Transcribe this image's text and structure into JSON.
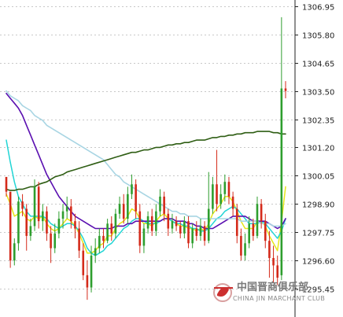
{
  "chart_data": {
    "type": "candlestick",
    "title": "",
    "xlabel": "",
    "ylabel": "",
    "ylim": [
      1294.3,
      1307.2
    ],
    "yticks": [
      "1306.95",
      "1305.80",
      "1304.65",
      "1303.50",
      "1302.35",
      "1301.20",
      "1300.05",
      "1298.90",
      "1297.75",
      "1296.60",
      "1295.45"
    ],
    "grid": true,
    "up_color": "#2e9e2e",
    "down_color": "#d42a1a",
    "candles": [
      [
        1300.0,
        1299.4,
        1299.9,
        1299.2
      ],
      [
        1299.4,
        1296.6,
        1298.9,
        1296.3
      ],
      [
        1296.6,
        1297.3,
        1297.5,
        1296.4
      ],
      [
        1297.3,
        1299.0,
        1299.2,
        1297.0
      ],
      [
        1299.0,
        1298.7,
        1299.3,
        1298.4
      ],
      [
        1298.7,
        1297.6,
        1298.9,
        1297.0
      ],
      [
        1297.6,
        1298.0,
        1298.3,
        1297.4
      ],
      [
        1298.0,
        1299.6,
        1299.9,
        1297.8
      ],
      [
        1299.6,
        1298.2,
        1299.8,
        1297.9
      ],
      [
        1298.2,
        1298.6,
        1298.9,
        1297.8
      ],
      [
        1298.6,
        1297.7,
        1298.8,
        1297.4
      ],
      [
        1297.7,
        1297.1,
        1298.0,
        1296.5
      ],
      [
        1297.1,
        1297.7,
        1298.1,
        1296.9
      ],
      [
        1297.7,
        1298.3,
        1298.6,
        1297.5
      ],
      [
        1298.3,
        1298.6,
        1298.9,
        1297.9
      ],
      [
        1298.6,
        1298.8,
        1299.2,
        1298.3
      ],
      [
        1298.8,
        1298.2,
        1299.1,
        1297.9
      ],
      [
        1298.2,
        1297.9,
        1298.5,
        1297.5
      ],
      [
        1297.9,
        1297.0,
        1298.2,
        1296.7
      ],
      [
        1297.0,
        1296.0,
        1297.3,
        1295.8
      ],
      [
        1296.0,
        1295.5,
        1296.6,
        1295.0
      ],
      [
        1295.5,
        1296.8,
        1297.2,
        1295.3
      ],
      [
        1296.8,
        1297.1,
        1297.5,
        1296.5
      ],
      [
        1297.1,
        1297.6,
        1297.9,
        1296.9
      ],
      [
        1297.6,
        1297.4,
        1297.9,
        1297.1
      ],
      [
        1297.4,
        1298.1,
        1298.3,
        1297.3
      ],
      [
        1298.1,
        1297.7,
        1298.4,
        1297.4
      ],
      [
        1297.7,
        1298.5,
        1298.7,
        1297.5
      ],
      [
        1298.5,
        1298.9,
        1299.2,
        1298.3
      ],
      [
        1298.9,
        1298.3,
        1299.3,
        1298.1
      ],
      [
        1298.3,
        1299.3,
        1299.6,
        1298.1
      ],
      [
        1299.3,
        1299.7,
        1300.1,
        1299.1
      ],
      [
        1299.7,
        1298.6,
        1299.9,
        1298.3
      ],
      [
        1298.6,
        1297.2,
        1298.9,
        1296.9
      ],
      [
        1297.2,
        1297.9,
        1298.1,
        1296.9
      ],
      [
        1297.9,
        1298.4,
        1298.6,
        1297.7
      ],
      [
        1298.4,
        1297.8,
        1298.7,
        1297.6
      ],
      [
        1297.8,
        1298.6,
        1298.9,
        1297.6
      ],
      [
        1298.6,
        1299.2,
        1299.5,
        1298.4
      ],
      [
        1299.2,
        1298.5,
        1299.4,
        1298.2
      ],
      [
        1298.5,
        1297.9,
        1298.7,
        1297.6
      ],
      [
        1297.9,
        1298.2,
        1298.5,
        1297.7
      ],
      [
        1298.2,
        1298.0,
        1298.4,
        1297.8
      ],
      [
        1298.0,
        1297.7,
        1298.2,
        1297.5
      ],
      [
        1297.7,
        1298.2,
        1298.4,
        1297.5
      ],
      [
        1298.2,
        1297.3,
        1298.4,
        1297.1
      ],
      [
        1297.3,
        1297.9,
        1298.1,
        1297.1
      ],
      [
        1297.9,
        1297.6,
        1298.2,
        1297.4
      ],
      [
        1297.6,
        1298.0,
        1298.3,
        1297.4
      ],
      [
        1298.0,
        1297.4,
        1298.2,
        1297.2
      ],
      [
        1297.4,
        1298.7,
        1300.2,
        1297.3
      ],
      [
        1298.7,
        1299.7,
        1300.0,
        1298.5
      ],
      [
        1299.7,
        1298.9,
        1301.1,
        1298.6
      ],
      [
        1298.9,
        1299.3,
        1299.7,
        1298.7
      ],
      [
        1299.3,
        1299.8,
        1300.1,
        1299.0
      ],
      [
        1299.8,
        1299.2,
        1300.0,
        1298.9
      ],
      [
        1299.2,
        1298.7,
        1299.4,
        1298.4
      ],
      [
        1298.7,
        1297.6,
        1298.9,
        1297.3
      ],
      [
        1297.6,
        1296.8,
        1297.9,
        1296.6
      ],
      [
        1296.8,
        1297.3,
        1297.7,
        1296.6
      ],
      [
        1297.3,
        1298.1,
        1298.4,
        1297.1
      ],
      [
        1298.1,
        1297.6,
        1298.3,
        1297.4
      ],
      [
        1297.6,
        1298.9,
        1299.2,
        1297.5
      ],
      [
        1298.9,
        1298.2,
        1299.1,
        1297.9
      ],
      [
        1298.2,
        1297.4,
        1298.5,
        1297.1
      ],
      [
        1297.4,
        1296.7,
        1297.8,
        1295.9
      ],
      [
        1296.7,
        1296.4,
        1297.2,
        1295.7
      ],
      [
        1296.4,
        1295.9,
        1296.8,
        1295.6
      ],
      [
        1296.0,
        1303.6,
        1306.5,
        1295.8
      ],
      [
        1303.6,
        1303.5,
        1303.9,
        1303.2
      ]
    ],
    "series": [
      {
        "color": "#e6e61a",
        "width": 1.5,
        "values": [
          1299.3,
          1298.9,
          1298.4,
          1298.5,
          1298.6,
          1298.3,
          1298.2,
          1298.4,
          1298.3,
          1298.4,
          1298.1,
          1297.9,
          1297.8,
          1297.9,
          1298.1,
          1298.3,
          1298.2,
          1298.0,
          1297.7,
          1297.3,
          1296.9,
          1296.9,
          1297.0,
          1297.2,
          1297.3,
          1297.6,
          1297.6,
          1297.9,
          1298.1,
          1298.2,
          1298.4,
          1298.7,
          1298.6,
          1298.3,
          1298.1,
          1298.1,
          1298.0,
          1298.2,
          1298.4,
          1298.5,
          1298.3,
          1298.2,
          1298.1,
          1298.0,
          1298.0,
          1297.9,
          1297.9,
          1297.8,
          1297.9,
          1297.8,
          1298.1,
          1298.5,
          1298.7,
          1298.9,
          1299.2,
          1299.2,
          1299.0,
          1298.6,
          1298.2,
          1297.9,
          1297.9,
          1297.9,
          1298.2,
          1298.2,
          1298.0,
          1297.6,
          1297.3,
          1297.0,
          1298.2,
          1299.6
        ]
      },
      {
        "color": "#22d5d5",
        "width": 1.5,
        "values": [
          1301.5,
          1300.6,
          1299.8,
          1299.2,
          1298.9,
          1298.6,
          1298.4,
          1298.4,
          1298.4,
          1298.4,
          1298.3,
          1298.1,
          1298.0,
          1297.9,
          1298.0,
          1298.1,
          1298.1,
          1298.0,
          1297.8,
          1297.5,
          1297.1,
          1296.9,
          1296.8,
          1296.9,
          1297.0,
          1297.2,
          1297.3,
          1297.5,
          1297.7,
          1297.9,
          1298.0,
          1298.2,
          1298.3,
          1298.3,
          1298.2,
          1298.1,
          1298.1,
          1298.1,
          1298.2,
          1298.3,
          1298.3,
          1298.2,
          1298.1,
          1298.1,
          1298.0,
          1298.0,
          1297.9,
          1297.9,
          1297.8,
          1297.8,
          1297.9,
          1298.1,
          1298.3,
          1298.4,
          1298.6,
          1298.7,
          1298.8,
          1298.7,
          1298.5,
          1298.3,
          1298.1,
          1298.1,
          1298.1,
          1298.2,
          1298.1,
          1297.9,
          1297.7,
          1297.5,
          1297.8,
          1298.3
        ]
      },
      {
        "color": "#5a0fb0",
        "width": 1.6,
        "values": [
          1303.4,
          1303.2,
          1303.0,
          1302.8,
          1302.5,
          1302.1,
          1301.7,
          1301.3,
          1300.9,
          1300.5,
          1300.1,
          1299.8,
          1299.5,
          1299.2,
          1299.0,
          1298.8,
          1298.6,
          1298.4,
          1298.3,
          1298.2,
          1298.1,
          1298.0,
          1297.9,
          1297.9,
          1297.9,
          1297.9,
          1297.9,
          1298.0,
          1298.0,
          1298.0,
          1298.1,
          1298.1,
          1298.2,
          1298.2,
          1298.2,
          1298.2,
          1298.2,
          1298.2,
          1298.2,
          1298.3,
          1298.3,
          1298.3,
          1298.2,
          1298.2,
          1298.2,
          1298.1,
          1298.1,
          1298.0,
          1298.0,
          1297.9,
          1297.9,
          1297.9,
          1298.0,
          1298.1,
          1298.2,
          1298.3,
          1298.4,
          1298.4,
          1298.4,
          1298.4,
          1298.3,
          1298.2,
          1298.2,
          1298.2,
          1298.2,
          1298.1,
          1298.0,
          1297.9,
          1298.0,
          1298.3
        ]
      },
      {
        "color": "#a8d5e3",
        "width": 1.6,
        "values": [
          1303.5,
          1303.3,
          1303.2,
          1303.1,
          1302.9,
          1302.8,
          1302.7,
          1302.5,
          1302.4,
          1302.3,
          1302.1,
          1302.0,
          1301.9,
          1301.8,
          1301.7,
          1301.6,
          1301.5,
          1301.4,
          1301.3,
          1301.2,
          1301.1,
          1301.0,
          1300.9,
          1300.8,
          1300.7,
          1300.5,
          1300.3,
          1300.1,
          1300.0,
          1299.8,
          1299.7,
          1299.6,
          1299.5,
          1299.4,
          1299.3,
          1299.2,
          1299.1,
          1299.0,
          1298.9,
          1298.8,
          1298.7,
          1298.6,
          1298.6,
          1298.5,
          1298.5,
          1298.4,
          1298.4,
          1298.4,
          1298.3,
          1298.3,
          1298.3,
          1298.3,
          1298.3,
          1298.3,
          1298.3,
          1298.3,
          1298.3,
          1298.3,
          1298.2,
          1298.2,
          1298.2,
          1298.2,
          1298.2,
          1298.1,
          1298.1,
          1298.1,
          1298.0,
          1298.0,
          1298.0,
          1298.1
        ]
      },
      {
        "color": "#2f5e14",
        "width": 1.6,
        "values": [
          1299.5,
          1299.45,
          1299.45,
          1299.5,
          1299.5,
          1299.55,
          1299.6,
          1299.6,
          1299.7,
          1299.75,
          1299.8,
          1299.9,
          1300.0,
          1300.05,
          1300.1,
          1300.2,
          1300.25,
          1300.3,
          1300.35,
          1300.4,
          1300.45,
          1300.5,
          1300.55,
          1300.6,
          1300.65,
          1300.7,
          1300.75,
          1300.8,
          1300.85,
          1300.9,
          1300.95,
          1301.0,
          1301.0,
          1301.05,
          1301.1,
          1301.1,
          1301.15,
          1301.2,
          1301.2,
          1301.25,
          1301.3,
          1301.3,
          1301.35,
          1301.35,
          1301.4,
          1301.4,
          1301.45,
          1301.5,
          1301.5,
          1301.5,
          1301.55,
          1301.6,
          1301.6,
          1301.65,
          1301.65,
          1301.7,
          1301.7,
          1301.75,
          1301.75,
          1301.8,
          1301.8,
          1301.8,
          1301.85,
          1301.85,
          1301.85,
          1301.85,
          1301.8,
          1301.8,
          1301.75,
          1301.75
        ]
      }
    ]
  },
  "watermark": {
    "cn_text": "中国晋商俱乐部",
    "en_text": "CHINA JIN MARCHANT CLUB",
    "colors": {
      "logo_red": "#cc2f2f",
      "logo_ring": "#d9a0a0"
    }
  }
}
